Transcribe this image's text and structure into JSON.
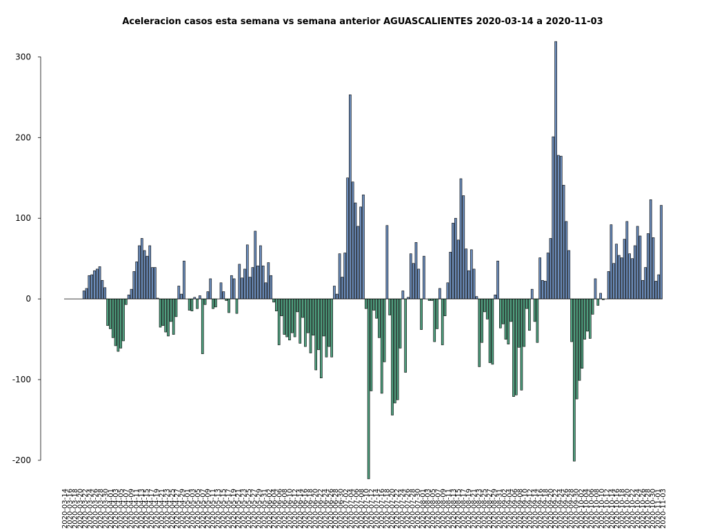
{
  "chart_data": {
    "type": "bar",
    "title": "Aceleracion casos esta semana vs semana anterior AGUASCALIENTES 2020-03-14 a 2020-11-03",
    "xlabel": "",
    "ylabel": "",
    "ylim": [
      -200,
      320
    ],
    "yticks": [
      300,
      200,
      100,
      0,
      -100,
      -200
    ],
    "ytick_labels": [
      "300",
      "200",
      "100",
      "0",
      "-100",
      "-200"
    ],
    "grid": false,
    "positive_color": "#6b8cba",
    "negative_color": "#4f9e7e",
    "start_date": "2020-03-14",
    "end_date": "2020-11-03",
    "values": [
      0,
      0,
      0,
      0,
      0,
      0,
      0,
      10,
      13,
      29,
      30,
      35,
      37,
      40,
      23,
      14,
      -33,
      -37,
      -48,
      -58,
      -65,
      -61,
      -52,
      -7,
      5,
      12,
      34,
      46,
      66,
      75,
      60,
      53,
      66,
      39,
      39,
      1,
      -35,
      -33,
      -41,
      -46,
      -28,
      -44,
      -22,
      16,
      6,
      47,
      0,
      -14,
      -15,
      2,
      -12,
      4,
      -68,
      -7,
      9,
      25,
      -12,
      -10,
      0,
      20,
      9,
      -2,
      -17,
      29,
      25,
      -18,
      43,
      26,
      37,
      67,
      27,
      39,
      84,
      41,
      66,
      41,
      20,
      45,
      29,
      -4,
      -15,
      -57,
      -21,
      -44,
      -47,
      -51,
      -42,
      -47,
      -16,
      -55,
      -23,
      -59,
      -42,
      -67,
      -45,
      -88,
      -63,
      -98,
      -46,
      -72,
      -59,
      -72,
      16,
      6,
      56,
      27,
      57,
      150,
      253,
      145,
      119,
      90,
      114,
      129,
      -12,
      -223,
      -114,
      -14,
      -24,
      -48,
      -117,
      -78,
      91,
      -20,
      -144,
      -129,
      -125,
      -61,
      10,
      -91,
      2,
      56,
      44,
      70,
      37,
      -38,
      53,
      0,
      -2,
      -2,
      -53,
      -37,
      13,
      -57,
      -21,
      20,
      58,
      94,
      100,
      73,
      149,
      128,
      62,
      35,
      61,
      37,
      3,
      -84,
      -54,
      -16,
      -25,
      -79,
      -81,
      5,
      47,
      -36,
      -31,
      -50,
      -56,
      -28,
      -121,
      -119,
      -60,
      -113,
      -59,
      -12,
      -39,
      12,
      -28,
      -54,
      51,
      23,
      22,
      57,
      75,
      201,
      319,
      178,
      177,
      141,
      96,
      60,
      -53,
      -201,
      -124,
      -101,
      -86,
      -50,
      -40,
      -49,
      -19,
      25,
      -8,
      7,
      -1,
      0,
      34,
      92,
      44,
      68,
      54,
      51,
      74,
      96,
      56,
      50,
      66,
      90,
      78,
      23,
      39,
      81,
      123,
      76,
      22,
      30,
      116
    ],
    "x_tick_labels": [
      "2020-03-14",
      "2020-03-16",
      "2020-03-18",
      "2020-03-20",
      "2020-03-22",
      "2020-03-24",
      "2020-03-26",
      "2020-03-28",
      "2020-03-30",
      "2020-04-01",
      "2020-04-03",
      "2020-04-05",
      "2020-04-07",
      "2020-04-09",
      "2020-04-11",
      "2020-04-13",
      "2020-04-15",
      "2020-04-17",
      "2020-04-19",
      "2020-04-21",
      "2020-04-23",
      "2020-04-25",
      "2020-04-27",
      "2020-04-29",
      "2020-05-01",
      "2020-05-03",
      "2020-05-05",
      "2020-05-07",
      "2020-05-09",
      "2020-05-11",
      "2020-05-13",
      "2020-05-15",
      "2020-05-17",
      "2020-05-19",
      "2020-05-21",
      "2020-05-23",
      "2020-05-25",
      "2020-05-27",
      "2020-05-29",
      "2020-05-31",
      "2020-06-02",
      "2020-06-04",
      "2020-06-06",
      "2020-06-08",
      "2020-06-10",
      "2020-06-12",
      "2020-06-14",
      "2020-06-16",
      "2020-06-18",
      "2020-06-20",
      "2020-06-22",
      "2020-06-24",
      "2020-06-26",
      "2020-06-28",
      "2020-06-30",
      "2020-07-02",
      "2020-07-04",
      "2020-07-06",
      "2020-07-08",
      "2020-07-10",
      "2020-07-12",
      "2020-07-14",
      "2020-07-16",
      "2020-07-18",
      "2020-07-20",
      "2020-07-22",
      "2020-07-24",
      "2020-07-26",
      "2020-07-28",
      "2020-07-30",
      "2020-08-01",
      "2020-08-03",
      "2020-08-05",
      "2020-08-07",
      "2020-08-09",
      "2020-08-11",
      "2020-08-13",
      "2020-08-15",
      "2020-08-17",
      "2020-08-19",
      "2020-08-21",
      "2020-08-23",
      "2020-08-25",
      "2020-08-27",
      "2020-08-29",
      "2020-08-31",
      "2020-09-02",
      "2020-09-04",
      "2020-09-06",
      "2020-09-08",
      "2020-09-10",
      "2020-09-12",
      "2020-09-14",
      "2020-09-16",
      "2020-09-18",
      "2020-09-20",
      "2020-09-22",
      "2020-09-24",
      "2020-09-26",
      "2020-09-28",
      "2020-09-30",
      "2020-10-02",
      "2020-10-04",
      "2020-10-06",
      "2020-10-08",
      "2020-10-10",
      "2020-10-12",
      "2020-10-14",
      "2020-10-16",
      "2020-10-18",
      "2020-10-20",
      "2020-10-22",
      "2020-10-24",
      "2020-10-26",
      "2020-10-28",
      "2020-10-30",
      "2020-11-01",
      "2020-11-03"
    ]
  }
}
